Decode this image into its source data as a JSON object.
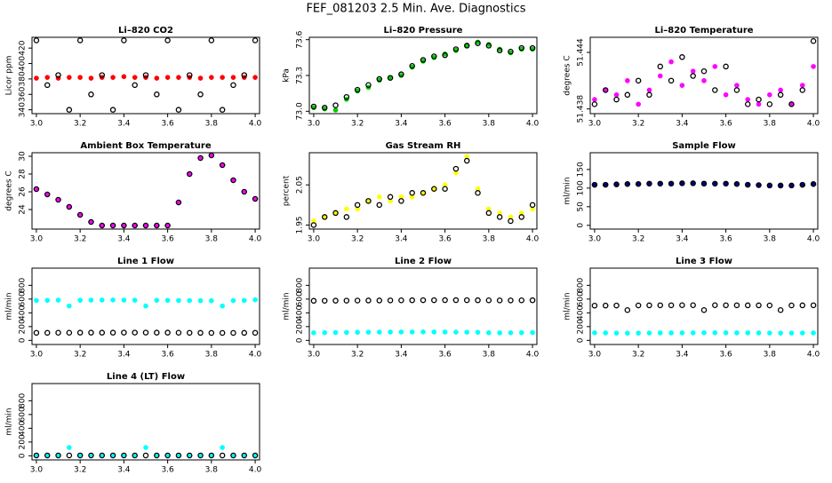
{
  "title": "FEF_081203  2.5 Min. Ave. Diagnostics",
  "chart_data": [
    {
      "type": "scatter",
      "title": "Li–820 CO2",
      "y_label": "Licor ppm",
      "x": [
        3.0,
        3.05,
        3.1,
        3.15,
        3.2,
        3.25,
        3.3,
        3.35,
        3.4,
        3.45,
        3.5,
        3.55,
        3.6,
        3.65,
        3.7,
        3.75,
        3.8,
        3.85,
        3.9,
        3.95,
        4.0
      ],
      "xlim": [
        2.98,
        4.02
      ],
      "xticks": [
        {
          "value": 3,
          "label": "3.0"
        },
        3.2,
        3.4,
        3.6,
        3.8,
        {
          "value": 4,
          "label": "4.0"
        }
      ],
      "ylim": [
        335,
        434
      ],
      "yticks": [
        340,
        360,
        380,
        400,
        420
      ],
      "series": [
        {
          "color": "#ff0000",
          "marker": "filled",
          "values": [
            381,
            382,
            381,
            382,
            382,
            381,
            382,
            382,
            383,
            382,
            382,
            381,
            382,
            382,
            382,
            381,
            382,
            382,
            382,
            382,
            382
          ]
        },
        {
          "color": "#000000",
          "marker": "open",
          "values": [
            430,
            372,
            385,
            340,
            430,
            360,
            385,
            340,
            430,
            372,
            385,
            360,
            430,
            340,
            385,
            360,
            430,
            340,
            372,
            385,
            430
          ]
        }
      ]
    },
    {
      "type": "scatter",
      "title": "Li–820 Pressure",
      "y_label": "kPa",
      "x": [
        3.0,
        3.05,
        3.1,
        3.15,
        3.2,
        3.25,
        3.3,
        3.35,
        3.4,
        3.45,
        3.5,
        3.55,
        3.6,
        3.65,
        3.7,
        3.75,
        3.8,
        3.85,
        3.9,
        3.95,
        4.0
      ],
      "xlim": [
        2.98,
        4.02
      ],
      "xticks": [
        {
          "value": 3,
          "label": "3.0"
        },
        3.2,
        3.4,
        3.6,
        3.8,
        {
          "value": 4,
          "label": "4.0"
        }
      ],
      "ylim": [
        72.98,
        73.62
      ],
      "yticks": [
        {
          "value": 73,
          "label": "73.0"
        },
        73.3,
        73.6
      ],
      "series": [
        {
          "color": "#00cc00",
          "marker": "filled",
          "values": [
            73.03,
            73.02,
            73.01,
            73.1,
            73.17,
            73.2,
            73.26,
            73.28,
            73.3,
            73.37,
            73.42,
            73.45,
            73.48,
            73.51,
            73.55,
            73.58,
            73.56,
            73.52,
            73.49,
            73.52,
            73.52
          ]
        },
        {
          "color": "#000000",
          "marker": "open",
          "values": [
            73.04,
            73.03,
            73.05,
            73.12,
            73.18,
            73.22,
            73.27,
            73.28,
            73.31,
            73.38,
            73.43,
            73.46,
            73.47,
            73.52,
            73.55,
            73.57,
            73.55,
            73.51,
            73.5,
            73.53,
            73.53
          ]
        }
      ]
    },
    {
      "type": "scatter",
      "title": "Li–820 Temperature",
      "y_label": "degrees C",
      "x": [
        3.0,
        3.05,
        3.1,
        3.15,
        3.2,
        3.25,
        3.3,
        3.35,
        3.4,
        3.45,
        3.5,
        3.55,
        3.6,
        3.65,
        3.7,
        3.75,
        3.8,
        3.85,
        3.9,
        3.95,
        4.0
      ],
      "xlim": [
        2.98,
        4.02
      ],
      "xticks": [
        {
          "value": 3,
          "label": "3.0"
        },
        3.2,
        3.4,
        3.6,
        3.8,
        {
          "value": 4,
          "label": "4.0"
        }
      ],
      "ylim": [
        51.4375,
        51.4456
      ],
      "yticks": [
        51.438,
        51.444
      ],
      "series": [
        {
          "color": "#ff00ff",
          "marker": "filled",
          "values": [
            51.439,
            51.44,
            51.4395,
            51.441,
            51.4385,
            51.44,
            51.4415,
            51.443,
            51.4405,
            51.442,
            51.441,
            51.4425,
            51.4395,
            51.4405,
            51.439,
            51.4385,
            51.4395,
            51.44,
            51.4385,
            51.4405,
            51.4425
          ]
        },
        {
          "color": "#000000",
          "marker": "open",
          "values": [
            51.4385,
            51.44,
            51.439,
            51.4395,
            51.441,
            51.4395,
            51.4425,
            51.441,
            51.4435,
            51.4415,
            51.442,
            51.44,
            51.4425,
            51.44,
            51.4385,
            51.439,
            51.4385,
            51.4395,
            51.4385,
            51.44,
            51.4452
          ]
        }
      ]
    },
    {
      "type": "scatter",
      "title": "Ambient Box Temperature",
      "y_label": "degrees C",
      "x": [
        3.0,
        3.05,
        3.1,
        3.15,
        3.2,
        3.25,
        3.3,
        3.35,
        3.4,
        3.45,
        3.5,
        3.55,
        3.6,
        3.65,
        3.7,
        3.75,
        3.8,
        3.85,
        3.9,
        3.95,
        4.0
      ],
      "xlim": [
        2.98,
        4.02
      ],
      "xticks": [
        {
          "value": 3,
          "label": "3.0"
        },
        3.2,
        3.4,
        3.6,
        3.8,
        {
          "value": 4,
          "label": "4.0"
        }
      ],
      "ylim": [
        21.8,
        30.4
      ],
      "yticks": [
        24,
        26,
        28,
        30
      ],
      "series": [
        {
          "color": "#ff00ff",
          "marker": "filled",
          "values": [
            26.3,
            25.7,
            25.1,
            24.3,
            23.4,
            22.6,
            22.2,
            22.2,
            22.2,
            22.2,
            22.2,
            22.2,
            22.2,
            24.8,
            28,
            29.8,
            30.1,
            29,
            27.3,
            26,
            25.2
          ]
        },
        {
          "color": "#000000",
          "marker": "open",
          "values": [
            26.3,
            25.7,
            25.1,
            24.3,
            23.4,
            22.6,
            22.2,
            22.2,
            22.2,
            22.2,
            22.2,
            22.2,
            22.2,
            24.8,
            28,
            29.8,
            30.1,
            29,
            27.3,
            26,
            25.2
          ]
        }
      ]
    },
    {
      "type": "scatter",
      "title": "Gas Stream RH",
      "y_label": "percent",
      "x": [
        3.0,
        3.05,
        3.1,
        3.15,
        3.2,
        3.25,
        3.3,
        3.35,
        3.4,
        3.45,
        3.5,
        3.55,
        3.6,
        3.65,
        3.7,
        3.75,
        3.8,
        3.85,
        3.9,
        3.95,
        4.0
      ],
      "xlim": [
        2.98,
        4.02
      ],
      "xticks": [
        {
          "value": 3,
          "label": "3.0"
        },
        3.2,
        3.4,
        3.6,
        3.8,
        {
          "value": 4,
          "label": "4.0"
        }
      ],
      "ylim": [
        1.94,
        2.13
      ],
      "yticks": [
        1.95,
        2.05
      ],
      "series": [
        {
          "color": "#ffff00",
          "marker": "filled",
          "values": [
            1.96,
            1.97,
            1.98,
            1.99,
            1.99,
            2.01,
            2.02,
            2.01,
            2.02,
            2.02,
            2.03,
            2.04,
            2.05,
            2.08,
            2.12,
            2.04,
            1.99,
            1.98,
            1.97,
            1.98,
            1.99
          ]
        },
        {
          "color": "#000000",
          "marker": "open",
          "values": [
            1.95,
            1.97,
            1.98,
            1.97,
            2.0,
            2.01,
            2.0,
            2.02,
            2.01,
            2.03,
            2.03,
            2.04,
            2.04,
            2.09,
            2.11,
            2.03,
            1.98,
            1.97,
            1.96,
            1.97,
            2.0
          ]
        }
      ]
    },
    {
      "type": "scatter",
      "title": "Sample Flow",
      "y_label": "ml/min",
      "x": [
        3.0,
        3.05,
        3.1,
        3.15,
        3.2,
        3.25,
        3.3,
        3.35,
        3.4,
        3.45,
        3.5,
        3.55,
        3.6,
        3.65,
        3.7,
        3.75,
        3.8,
        3.85,
        3.9,
        3.95,
        4.0
      ],
      "xlim": [
        2.98,
        4.02
      ],
      "xticks": [
        {
          "value": 3,
          "label": "3.0"
        },
        3.2,
        3.4,
        3.6,
        3.8,
        {
          "value": 4,
          "label": "4.0"
        }
      ],
      "ylim": [
        -10,
        195
      ],
      "yticks": [
        0,
        50,
        100,
        150
      ],
      "series": [
        {
          "color": "#000080",
          "marker": "filled",
          "values": [
            108,
            109,
            110,
            110,
            111,
            111,
            112,
            112,
            112,
            113,
            113,
            112,
            112,
            111,
            110,
            108,
            107,
            106,
            107,
            108,
            110
          ]
        },
        {
          "color": "#000000",
          "marker": "open",
          "values": [
            109,
            109,
            110,
            111,
            111,
            112,
            112,
            112,
            113,
            113,
            112,
            112,
            112,
            111,
            109,
            108,
            107,
            107,
            107,
            109,
            111
          ]
        }
      ]
    },
    {
      "type": "scatter",
      "title": "Line 1 Flow",
      "y_label": "ml/min",
      "x": [
        3.0,
        3.05,
        3.1,
        3.15,
        3.2,
        3.25,
        3.3,
        3.35,
        3.4,
        3.45,
        3.5,
        3.55,
        3.6,
        3.65,
        3.7,
        3.75,
        3.8,
        3.85,
        3.9,
        3.95,
        4.0
      ],
      "xlim": [
        2.98,
        4.02
      ],
      "xticks": [
        {
          "value": 3,
          "label": "3.0"
        },
        3.2,
        3.4,
        3.6,
        3.8,
        {
          "value": 4,
          "label": "4.0"
        }
      ],
      "ylim": [
        -60,
        1050
      ],
      "yticks": [
        0,
        200,
        400,
        600,
        800
      ],
      "series": [
        {
          "color": "#00ffff",
          "marker": "filled",
          "values": [
            580,
            582,
            585,
            500,
            583,
            585,
            586,
            587,
            585,
            584,
            500,
            583,
            582,
            580,
            578,
            577,
            576,
            500,
            578,
            580,
            590
          ]
        },
        {
          "color": "#000000",
          "marker": "open",
          "values": [
            110,
            110,
            111,
            111,
            112,
            112,
            112,
            112,
            113,
            113,
            113,
            112,
            112,
            111,
            110,
            109,
            108,
            108,
            108,
            109,
            110
          ]
        }
      ]
    },
    {
      "type": "scatter",
      "title": "Line 2 Flow",
      "y_label": "ml/min",
      "x": [
        3.0,
        3.05,
        3.1,
        3.15,
        3.2,
        3.25,
        3.3,
        3.35,
        3.4,
        3.45,
        3.5,
        3.55,
        3.6,
        3.65,
        3.7,
        3.75,
        3.8,
        3.85,
        3.9,
        3.95,
        4.0
      ],
      "xlim": [
        2.98,
        4.02
      ],
      "xticks": [
        {
          "value": 3,
          "label": "3.0"
        },
        3.2,
        3.4,
        3.6,
        3.8,
        {
          "value": 4,
          "label": "4.0"
        }
      ],
      "ylim": [
        -60,
        1050
      ],
      "yticks": [
        0,
        200,
        400,
        600,
        800
      ],
      "series": [
        {
          "color": "#00ffff",
          "marker": "filled",
          "values": [
            110,
            112,
            114,
            116,
            118,
            119,
            120,
            121,
            122,
            122,
            123,
            122,
            121,
            120,
            119,
            117,
            110,
            108,
            110,
            112,
            113
          ]
        },
        {
          "color": "#000000",
          "marker": "open",
          "values": [
            575,
            576,
            577,
            578,
            579,
            580,
            580,
            581,
            582,
            583,
            584,
            584,
            585,
            585,
            584,
            583,
            582,
            581,
            581,
            582,
            583
          ]
        }
      ]
    },
    {
      "type": "scatter",
      "title": "Line 3 Flow",
      "y_label": "ml/min",
      "x": [
        3.0,
        3.05,
        3.1,
        3.15,
        3.2,
        3.25,
        3.3,
        3.35,
        3.4,
        3.45,
        3.5,
        3.55,
        3.6,
        3.65,
        3.7,
        3.75,
        3.8,
        3.85,
        3.9,
        3.95,
        4.0
      ],
      "xlim": [
        2.98,
        4.02
      ],
      "xticks": [
        {
          "value": 3,
          "label": "3.0"
        },
        3.2,
        3.4,
        3.6,
        3.8,
        {
          "value": 4,
          "label": "4.0"
        }
      ],
      "ylim": [
        -60,
        1050
      ],
      "yticks": [
        0,
        200,
        400,
        600,
        800
      ],
      "series": [
        {
          "color": "#00ffff",
          "marker": "filled",
          "values": [
            110,
            108,
            106,
            105,
            106,
            107,
            108,
            108,
            109,
            109,
            110,
            110,
            110,
            109,
            109,
            108,
            107,
            106,
            106,
            107,
            108
          ]
        },
        {
          "color": "#000000",
          "marker": "open",
          "values": [
            505,
            506,
            507,
            440,
            508,
            509,
            510,
            510,
            511,
            511,
            440,
            511,
            510,
            510,
            509,
            509,
            508,
            440,
            508,
            509,
            510
          ]
        }
      ]
    },
    {
      "type": "scatter",
      "title": "Line 4 (LT) Flow",
      "y_label": "ml/min",
      "x": [
        3.0,
        3.05,
        3.1,
        3.15,
        3.2,
        3.25,
        3.3,
        3.35,
        3.4,
        3.45,
        3.5,
        3.55,
        3.6,
        3.65,
        3.7,
        3.75,
        3.8,
        3.85,
        3.9,
        3.95,
        4.0
      ],
      "xlim": [
        2.98,
        4.02
      ],
      "xticks": [
        {
          "value": 3,
          "label": "3.0"
        },
        3.2,
        3.4,
        3.6,
        3.8,
        {
          "value": 4,
          "label": "4.0"
        }
      ],
      "ylim": [
        -60,
        1050
      ],
      "yticks": [
        0,
        200,
        400,
        600,
        800
      ],
      "series": [
        {
          "color": "#00ffff",
          "marker": "filled",
          "values": [
            5,
            5,
            5,
            120,
            5,
            5,
            5,
            5,
            5,
            5,
            120,
            5,
            5,
            5,
            5,
            5,
            5,
            120,
            5,
            5,
            5
          ]
        },
        {
          "color": "#000000",
          "marker": "open",
          "values": [
            5,
            5,
            5,
            5,
            5,
            5,
            5,
            5,
            5,
            5,
            5,
            5,
            5,
            5,
            5,
            5,
            5,
            5,
            5,
            5,
            5
          ]
        }
      ]
    }
  ]
}
